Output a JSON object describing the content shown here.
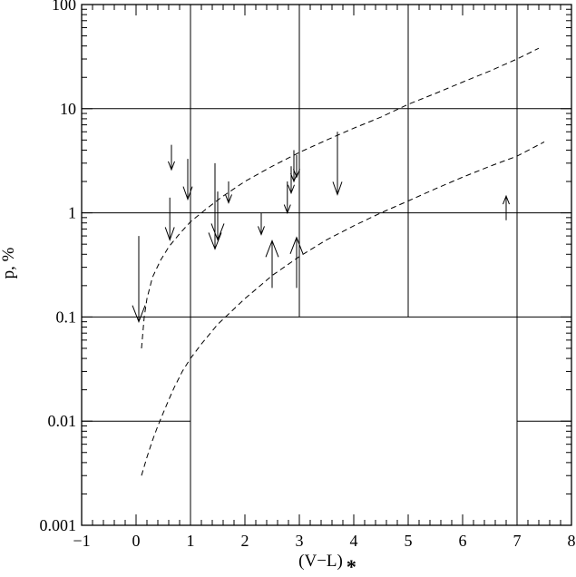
{
  "chart_data": {
    "type": "scatter",
    "title": "",
    "xlabel": "(V−L)",
    "xlabel_subscript": "*",
    "ylabel": "p, %",
    "xlim": [
      -1,
      8
    ],
    "ylim": [
      0.001,
      100
    ],
    "yscale": "log",
    "x_ticks": [
      "−1",
      "0",
      "1",
      "2",
      "3",
      "4",
      "5",
      "6",
      "7",
      "8"
    ],
    "y_ticks": [
      "0.001",
      "0.01",
      "0.1",
      "1",
      "10",
      "100"
    ],
    "grid": "partial",
    "upper_limits": [
      {
        "x": 0.05,
        "from": 0.6,
        "to": 0.09,
        "size": "large"
      },
      {
        "x": 0.62,
        "from": 1.4,
        "to": 0.55,
        "size": "normal"
      },
      {
        "x": 0.65,
        "from": 4.5,
        "to": 2.6,
        "size": "small"
      },
      {
        "x": 0.95,
        "from": 3.3,
        "to": 1.35,
        "size": "normal"
      },
      {
        "x": 1.45,
        "from": 3.0,
        "to": 0.45,
        "size": "large"
      },
      {
        "x": 1.5,
        "from": 1.6,
        "to": 0.55,
        "size": "large"
      },
      {
        "x": 1.7,
        "from": 2.0,
        "to": 1.25,
        "size": "small"
      },
      {
        "x": 2.3,
        "from": 1.0,
        "to": 0.62,
        "size": "small"
      },
      {
        "x": 2.78,
        "from": 2.0,
        "to": 1.0,
        "size": "small"
      },
      {
        "x": 2.85,
        "from": 2.8,
        "to": 1.55,
        "size": "small"
      },
      {
        "x": 2.9,
        "from": 4.0,
        "to": 2.0,
        "size": "small"
      },
      {
        "x": 2.95,
        "from": 3.6,
        "to": 2.2,
        "size": "small"
      },
      {
        "x": 3.7,
        "from": 6.0,
        "to": 1.5,
        "size": "normal"
      }
    ],
    "lower_limits": [
      {
        "x": 2.5,
        "from": 0.19,
        "to": 0.54,
        "size": "large"
      },
      {
        "x": 2.95,
        "from": 0.19,
        "to": 0.58,
        "size": "large"
      },
      {
        "x": 6.8,
        "from": 0.85,
        "to": 1.45,
        "size": "small"
      }
    ],
    "series": [
      {
        "style": "dashed",
        "x": [
          0.1,
          0.15,
          0.2,
          0.3,
          0.45,
          0.6,
          0.8,
          1.0,
          1.3,
          1.6,
          2.0,
          2.5,
          3.0,
          3.5,
          4.0,
          4.5,
          5.0,
          5.5,
          6.0,
          6.5,
          7.0,
          7.4
        ],
        "y": [
          0.05,
          0.1,
          0.15,
          0.24,
          0.35,
          0.47,
          0.63,
          0.82,
          1.1,
          1.45,
          2.0,
          2.8,
          3.8,
          5.0,
          6.5,
          8.3,
          11,
          14,
          18,
          23,
          30,
          38
        ]
      },
      {
        "style": "dashed",
        "x": [
          0.1,
          0.2,
          0.3,
          0.4,
          0.5,
          0.6,
          0.7,
          0.85,
          1.0,
          1.2,
          1.5,
          2.0,
          2.5,
          3.0,
          3.5,
          4.0,
          4.5,
          5.0,
          5.5,
          6.0,
          6.5,
          7.0,
          7.5
        ],
        "y": [
          0.003,
          0.0045,
          0.0065,
          0.009,
          0.012,
          0.016,
          0.021,
          0.03,
          0.04,
          0.055,
          0.085,
          0.15,
          0.25,
          0.38,
          0.55,
          0.75,
          1.0,
          1.3,
          1.7,
          2.2,
          2.8,
          3.5,
          4.8
        ]
      }
    ],
    "grid_segments": [
      {
        "orient": "v",
        "at": 1,
        "from": 0.001,
        "to": 100
      },
      {
        "orient": "v",
        "at": 3,
        "from": 0.1,
        "to": 100
      },
      {
        "orient": "v",
        "at": 5,
        "from": 0.1,
        "to": 100
      },
      {
        "orient": "v",
        "at": 7,
        "from": 0.001,
        "to": 100
      },
      {
        "orient": "h",
        "at": 10,
        "from": -1,
        "to": 8
      },
      {
        "orient": "h",
        "at": 1,
        "from": -1,
        "to": 8
      },
      {
        "orient": "h",
        "at": 0.1,
        "from": -1,
        "to": 8
      },
      {
        "orient": "h",
        "at": 0.01,
        "from": -1,
        "to": 1
      },
      {
        "orient": "h",
        "at": 0.01,
        "from": 7,
        "to": 8
      }
    ]
  }
}
